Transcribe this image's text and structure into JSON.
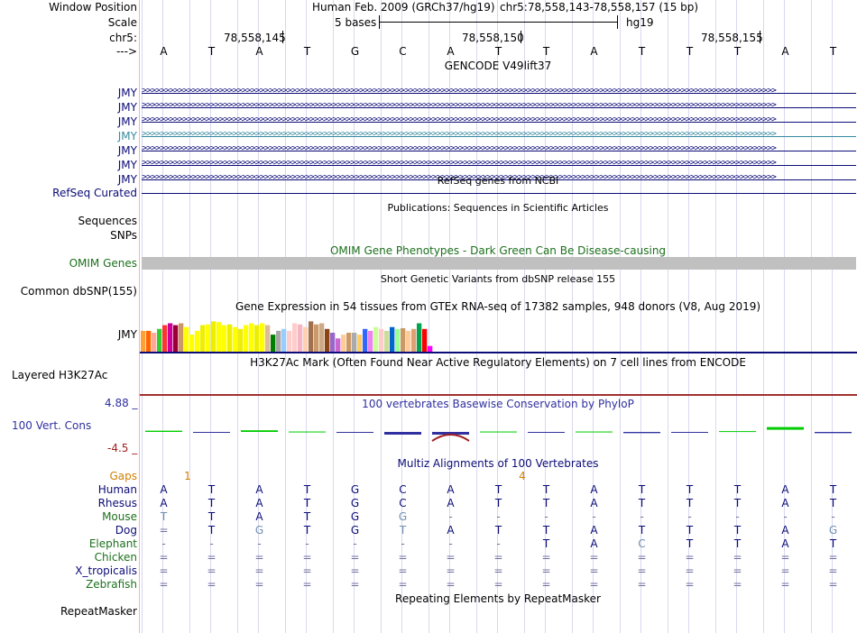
{
  "header": {
    "window_position_label": "Window Position",
    "scale_label": "Scale",
    "chrom_label": "chr5:",
    "strand_label": "--->",
    "assembly_title": "Human Feb. 2009 (GRCh37/hg19)",
    "position": "chr5:78,558,143-78,558,157 (15 bp)",
    "scale_text": "5 bases",
    "db": "hg19",
    "coords": [
      "78,558,145",
      "78,558,150",
      "78,558,155"
    ]
  },
  "bases": [
    "A",
    "T",
    "A",
    "T",
    "G",
    "C",
    "A",
    "T",
    "T",
    "A",
    "T",
    "T",
    "T",
    "A",
    "T"
  ],
  "gencode": {
    "title": "GENCODE V49lift37",
    "transcripts": [
      {
        "label": "JMY",
        "color": "#0c0c78"
      },
      {
        "label": "JMY",
        "color": "#0c0c78"
      },
      {
        "label": "JMY",
        "color": "#0c0c78"
      },
      {
        "label": "JMY",
        "color": "#368ba0"
      },
      {
        "label": "JMY",
        "color": "#0c0c78"
      },
      {
        "label": "JMY",
        "color": "#0c0c78"
      },
      {
        "label": "JMY",
        "color": "#0c0c78"
      }
    ]
  },
  "refseq": {
    "title": "RefSeq genes from NCBI",
    "label": "RefSeq Curated"
  },
  "publications": {
    "title": "Publications: Sequences in Scientific Articles",
    "labels": [
      "Sequences",
      "SNPs"
    ]
  },
  "omim": {
    "title": "OMIM Gene Phenotypes - Dark Green Can Be Disease-causing",
    "label": "OMIM Genes"
  },
  "dbsnp": {
    "title": "Short Genetic Variants from dbSNP release 155",
    "label": "Common dbSNP(155)"
  },
  "gtex": {
    "title": "Gene Expression in 54 tissues from GTEx RNA-seq of 17382 samples, 948 donors (V8, Aug 2019)",
    "label": "JMY",
    "values": [
      0.55,
      0.55,
      0.5,
      0.6,
      0.7,
      0.75,
      0.7,
      0.75,
      0.65,
      0.45,
      0.55,
      0.7,
      0.72,
      0.8,
      0.78,
      0.7,
      0.72,
      0.65,
      0.6,
      0.7,
      0.75,
      0.7,
      0.75,
      0.7,
      0.45,
      0.55,
      0.6,
      0.55,
      0.75,
      0.72,
      0.65,
      0.8,
      0.72,
      0.75,
      0.6,
      0.5,
      0.35,
      0.45,
      0.5,
      0.5,
      0.45,
      0.6,
      0.55,
      0.65,
      0.6,
      0.55,
      0.65,
      0.6,
      0.62,
      0.55,
      0.6,
      0.75,
      0.6,
      0.15
    ],
    "colors": [
      "#ff9f38",
      "#ff6600",
      "#ffaa99",
      "#33cc33",
      "#ff3333",
      "#cc0099",
      "#990033",
      "#cc9966",
      "#ffff00",
      "#ffff00",
      "#ffff00",
      "#eeee00",
      "#ffff00",
      "#eeee00",
      "#ffff00",
      "#ffff00",
      "#eeee00",
      "#ffff00",
      "#eeee00",
      "#ffff00",
      "#ffff00",
      "#eeee00",
      "#ffff00",
      "#ddbb99",
      "#008000",
      "#a6a6a6",
      "#99ccff",
      "#ffcccc",
      "#ffcccc",
      "#f4b6c2",
      "#ffd1b2",
      "#a07050",
      "#cc9966",
      "#ccaa88",
      "#8b4513",
      "#9966cc",
      "#cc66cc",
      "#ffcc99",
      "#cc9966",
      "#aaaaaa",
      "#ffcc66",
      "#3366ff",
      "#ee82ee",
      "#ccff99",
      "#ffcccc",
      "#ccdd99",
      "#0066cc",
      "#99ff99",
      "#cc9966",
      "#ffcc99",
      "#dda077",
      "#00a550",
      "#ff0000",
      "#ff00ff"
    ]
  },
  "h3k27ac": {
    "title": "H3K27Ac Mark (Often Found Near Active Regulatory Elements) on 7 cell lines from ENCODE",
    "label": "Layered H3K27Ac"
  },
  "phylop": {
    "title": "100 vertebrates Basewise Conservation by PhyloP",
    "label": "100 Vert. Cons",
    "max": "4.88 _",
    "min": "-4.5 _",
    "values": [
      0.15,
      -0.05,
      0.2,
      0.05,
      -0.1,
      -0.5,
      -2.2,
      0.05,
      -0.05,
      0.05,
      -0.15,
      -0.1,
      0.1,
      0.6,
      -0.15
    ]
  },
  "multiz": {
    "title": "Multiz Alignments of 100 Vertebrates",
    "gaps_label": "Gaps",
    "gap_counts": [
      {
        "after": 0,
        "n": "1"
      },
      {
        "after": 7,
        "n": "4"
      }
    ],
    "species": [
      {
        "name": "Human",
        "color": "#0c0c78",
        "seq": [
          "A",
          "T",
          "A",
          "T",
          "G",
          "C",
          "A",
          "T",
          "T",
          "A",
          "T",
          "T",
          "T",
          "A",
          "T"
        ]
      },
      {
        "name": "Rhesus",
        "color": "#0c0c78",
        "seq": [
          "A",
          "T",
          "A",
          "T",
          "G",
          "C",
          "A",
          "T",
          "T",
          "A",
          "T",
          "T",
          "T",
          "A",
          "T"
        ]
      },
      {
        "name": "Mouse",
        "color": "#1c701c",
        "seq": [
          "T",
          "T",
          "A",
          "T",
          "G",
          "G",
          "-",
          "-",
          "-",
          "-",
          "-",
          "-",
          "-",
          "-",
          "-"
        ]
      },
      {
        "name": "Dog",
        "color": "#0c0c78",
        "seq": [
          "=",
          "T",
          "G",
          "T",
          "G",
          "T",
          "A",
          "T",
          "T",
          "A",
          "T",
          "T",
          "T",
          "A",
          "G"
        ]
      },
      {
        "name": "Elephant",
        "color": "#1c701c",
        "seq": [
          "-",
          "-",
          "-",
          "-",
          "-",
          "-",
          "-",
          "-",
          "T",
          "A",
          "C",
          "T",
          "T",
          "A",
          "T"
        ]
      },
      {
        "name": "Chicken",
        "color": "#1c701c",
        "seq": [
          "=",
          "=",
          "=",
          "=",
          "=",
          "=",
          "=",
          "=",
          "=",
          "=",
          "=",
          "=",
          "=",
          "=",
          "="
        ]
      },
      {
        "name": "X_tropicalis",
        "color": "#0c0c78",
        "seq": [
          "=",
          "=",
          "=",
          "=",
          "=",
          "=",
          "=",
          "=",
          "=",
          "=",
          "=",
          "=",
          "=",
          "=",
          "="
        ]
      },
      {
        "name": "Zebrafish",
        "color": "#1c701c",
        "seq": [
          "=",
          "=",
          "=",
          "=",
          "=",
          "=",
          "=",
          "=",
          "=",
          "=",
          "=",
          "=",
          "=",
          "=",
          "="
        ]
      }
    ]
  },
  "repeatmasker": {
    "title": "Repeating Elements by RepeatMasker",
    "label": "RepeatMasker"
  },
  "colors": {
    "track_label": "#0c0c78",
    "omim_green": "#1c701c",
    "gaps_orange": "#d08000",
    "sidebar_line": "#ffb0b0",
    "gtex_border": "#0c0c78",
    "h3k27ac_line": "#a03030",
    "phylop_neg": "#a02020",
    "phylop_pos": "#00cc00",
    "phylop_down": "#3030a0"
  }
}
